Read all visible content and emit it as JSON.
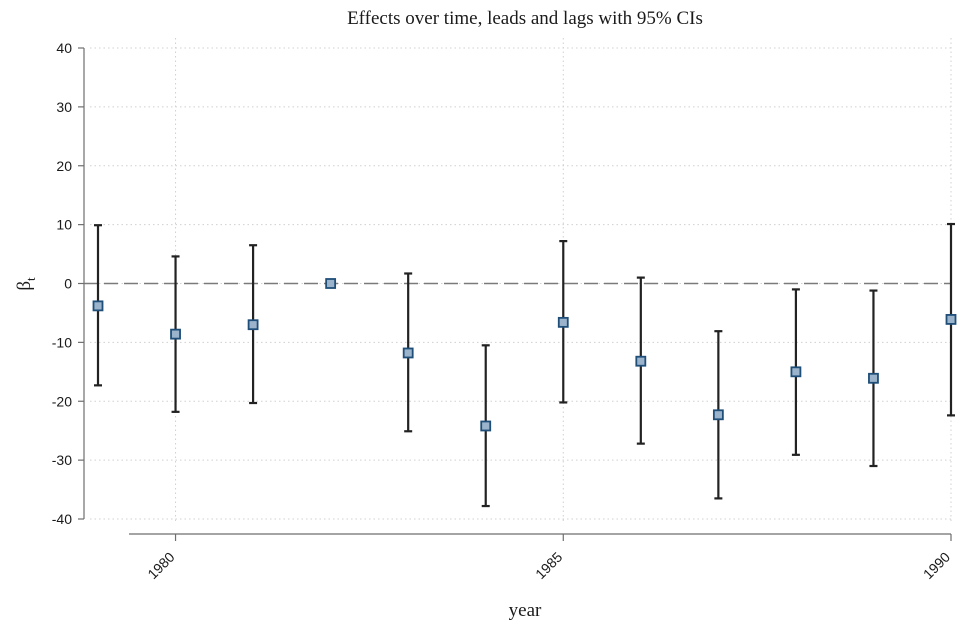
{
  "chart_data": {
    "type": "scatter",
    "title": "Effects over time, leads and lags with 95% CIs",
    "xlabel": "year",
    "ylabel": "β",
    "ylabel_subscript": "t",
    "xlim": [
      1979,
      1990
    ],
    "ylim": [
      -40,
      40
    ],
    "xticks": [
      1980,
      1985,
      1990
    ],
    "yticks": [
      -40,
      -30,
      -20,
      -10,
      0,
      10,
      20,
      30,
      40
    ],
    "grid": true,
    "reference_line": 0,
    "series": [
      {
        "x": [
          1979,
          1980,
          1981,
          1982,
          1983,
          1984,
          1985,
          1986,
          1987,
          1988,
          1989,
          1990
        ],
        "estimate": [
          -3.8,
          -8.6,
          -7.0,
          0.0,
          -11.8,
          -24.2,
          -6.6,
          -13.2,
          -22.3,
          -15.0,
          -16.1,
          -6.1
        ],
        "ci_low": [
          -17.3,
          -21.8,
          -20.3,
          0.0,
          -25.1,
          -37.8,
          -20.2,
          -27.2,
          -36.5,
          -29.1,
          -31.0,
          -22.4
        ],
        "ci_high": [
          9.9,
          4.6,
          6.5,
          0.0,
          1.7,
          -10.5,
          7.2,
          1.0,
          -8.1,
          -1.0,
          -1.2,
          10.1
        ]
      }
    ],
    "colors": {
      "marker_fill": "#9bb4cc",
      "marker_edge": "#1f4e79",
      "ci": "#222222",
      "reference": "#7a7a7a"
    }
  }
}
